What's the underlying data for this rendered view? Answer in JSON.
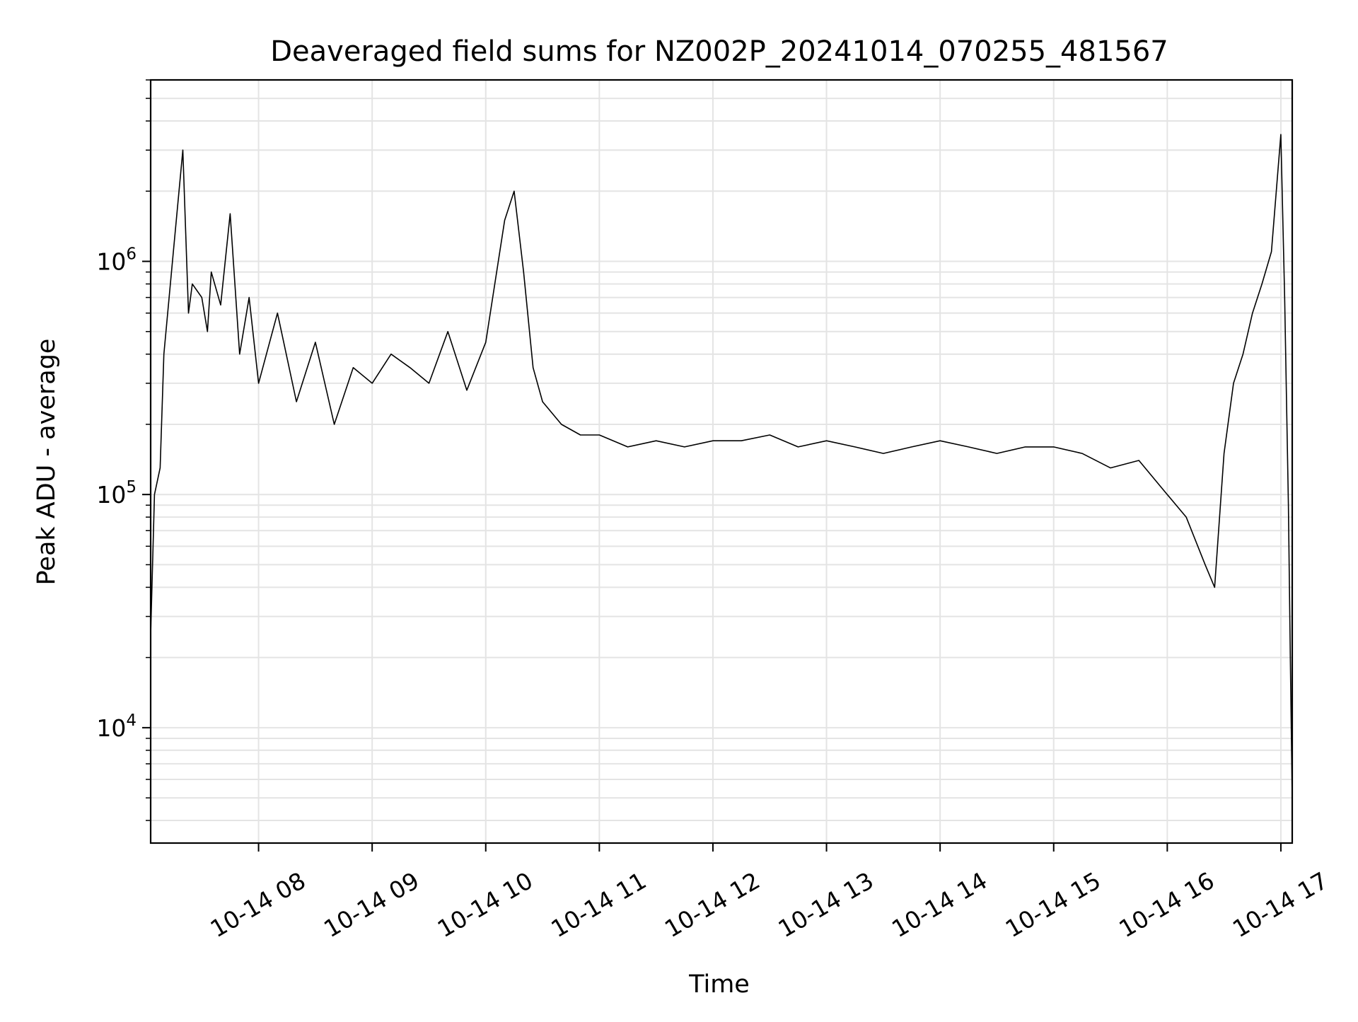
{
  "chart_data": {
    "type": "line",
    "title": "Deaveraged field sums for NZ002P_20241014_070255_481567",
    "xlabel": "Time",
    "ylabel": "Peak ADU - average",
    "yscale": "log",
    "ylim": [
      3200,
      6000000
    ],
    "xlim": [
      "2024-10-14 07:03",
      "2024-10-14 17:06"
    ],
    "grid": true,
    "x_ticks": [
      {
        "x": "2024-10-14 08:00",
        "label": "10-14 08"
      },
      {
        "x": "2024-10-14 09:00",
        "label": "10-14 09"
      },
      {
        "x": "2024-10-14 10:00",
        "label": "10-14 10"
      },
      {
        "x": "2024-10-14 11:00",
        "label": "10-14 11"
      },
      {
        "x": "2024-10-14 12:00",
        "label": "10-14 12"
      },
      {
        "x": "2024-10-14 13:00",
        "label": "10-14 13"
      },
      {
        "x": "2024-10-14 14:00",
        "label": "10-14 14"
      },
      {
        "x": "2024-10-14 15:00",
        "label": "10-14 15"
      },
      {
        "x": "2024-10-14 16:00",
        "label": "10-14 16"
      },
      {
        "x": "2024-10-14 17:00",
        "label": "10-14 17"
      }
    ],
    "y_ticks": [
      {
        "value": 10000,
        "base": "10",
        "exp": "4"
      },
      {
        "value": 100000,
        "base": "10",
        "exp": "5"
      },
      {
        "value": 1000000,
        "base": "10",
        "exp": "6"
      }
    ],
    "series": [
      {
        "color": "#000000",
        "x": [
          "2024-10-14 07:03",
          "2024-10-14 07:05",
          "2024-10-14 07:08",
          "2024-10-14 07:10",
          "2024-10-14 07:15",
          "2024-10-14 07:20",
          "2024-10-14 07:23",
          "2024-10-14 07:25",
          "2024-10-14 07:30",
          "2024-10-14 07:33",
          "2024-10-14 07:35",
          "2024-10-14 07:40",
          "2024-10-14 07:45",
          "2024-10-14 07:50",
          "2024-10-14 07:55",
          "2024-10-14 08:00",
          "2024-10-14 08:10",
          "2024-10-14 08:20",
          "2024-10-14 08:30",
          "2024-10-14 08:40",
          "2024-10-14 08:50",
          "2024-10-14 09:00",
          "2024-10-14 09:10",
          "2024-10-14 09:20",
          "2024-10-14 09:30",
          "2024-10-14 09:40",
          "2024-10-14 09:50",
          "2024-10-14 10:00",
          "2024-10-14 10:10",
          "2024-10-14 10:15",
          "2024-10-14 10:20",
          "2024-10-14 10:25",
          "2024-10-14 10:30",
          "2024-10-14 10:40",
          "2024-10-14 10:50",
          "2024-10-14 11:00",
          "2024-10-14 11:15",
          "2024-10-14 11:30",
          "2024-10-14 11:45",
          "2024-10-14 12:00",
          "2024-10-14 12:15",
          "2024-10-14 12:30",
          "2024-10-14 12:45",
          "2024-10-14 13:00",
          "2024-10-14 13:15",
          "2024-10-14 13:30",
          "2024-10-14 13:45",
          "2024-10-14 14:00",
          "2024-10-14 14:15",
          "2024-10-14 14:30",
          "2024-10-14 14:45",
          "2024-10-14 15:00",
          "2024-10-14 15:15",
          "2024-10-14 15:30",
          "2024-10-14 15:45",
          "2024-10-14 16:00",
          "2024-10-14 16:10",
          "2024-10-14 16:20",
          "2024-10-14 16:25",
          "2024-10-14 16:30",
          "2024-10-14 16:35",
          "2024-10-14 16:40",
          "2024-10-14 16:45",
          "2024-10-14 16:50",
          "2024-10-14 16:55",
          "2024-10-14 17:00",
          "2024-10-14 17:02",
          "2024-10-14 17:04",
          "2024-10-14 17:05",
          "2024-10-14 17:06"
        ],
        "y": [
          25000,
          100000,
          130000,
          400000,
          1100000,
          3000000,
          600000,
          800000,
          700000,
          500000,
          900000,
          650000,
          1600000,
          400000,
          700000,
          300000,
          600000,
          250000,
          450000,
          200000,
          350000,
          300000,
          400000,
          350000,
          300000,
          500000,
          280000,
          450000,
          1500000,
          2000000,
          900000,
          350000,
          250000,
          200000,
          180000,
          180000,
          160000,
          170000,
          160000,
          170000,
          170000,
          180000,
          160000,
          170000,
          160000,
          150000,
          160000,
          170000,
          160000,
          150000,
          160000,
          160000,
          150000,
          130000,
          140000,
          100000,
          80000,
          50000,
          40000,
          150000,
          300000,
          400000,
          600000,
          800000,
          1100000,
          3500000,
          700000,
          90000,
          20000,
          5000
        ]
      }
    ]
  }
}
